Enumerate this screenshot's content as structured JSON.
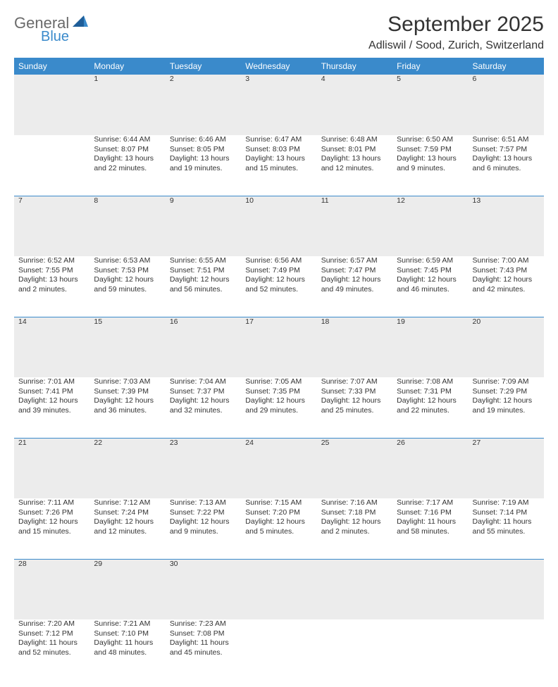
{
  "brand": {
    "part1": "General",
    "part2": "Blue"
  },
  "brand_colors": {
    "gray": "#6a6a6a",
    "blue": "#3a8acb"
  },
  "header": {
    "month_title": "September 2025",
    "location": "Adliswil / Sood, Zurich, Switzerland"
  },
  "calendar": {
    "header_bg": "#3a8acb",
    "header_fg": "#ffffff",
    "day_header_bg": "#ececec",
    "separator_color": "#3a8acb",
    "days_of_week": [
      "Sunday",
      "Monday",
      "Tuesday",
      "Wednesday",
      "Thursday",
      "Friday",
      "Saturday"
    ],
    "weeks": [
      {
        "nums": [
          "",
          "1",
          "2",
          "3",
          "4",
          "5",
          "6"
        ],
        "cells": [
          [],
          [
            "Sunrise: 6:44 AM",
            "Sunset: 8:07 PM",
            "Daylight: 13 hours",
            "and 22 minutes."
          ],
          [
            "Sunrise: 6:46 AM",
            "Sunset: 8:05 PM",
            "Daylight: 13 hours",
            "and 19 minutes."
          ],
          [
            "Sunrise: 6:47 AM",
            "Sunset: 8:03 PM",
            "Daylight: 13 hours",
            "and 15 minutes."
          ],
          [
            "Sunrise: 6:48 AM",
            "Sunset: 8:01 PM",
            "Daylight: 13 hours",
            "and 12 minutes."
          ],
          [
            "Sunrise: 6:50 AM",
            "Sunset: 7:59 PM",
            "Daylight: 13 hours",
            "and 9 minutes."
          ],
          [
            "Sunrise: 6:51 AM",
            "Sunset: 7:57 PM",
            "Daylight: 13 hours",
            "and 6 minutes."
          ]
        ]
      },
      {
        "nums": [
          "7",
          "8",
          "9",
          "10",
          "11",
          "12",
          "13"
        ],
        "cells": [
          [
            "Sunrise: 6:52 AM",
            "Sunset: 7:55 PM",
            "Daylight: 13 hours",
            "and 2 minutes."
          ],
          [
            "Sunrise: 6:53 AM",
            "Sunset: 7:53 PM",
            "Daylight: 12 hours",
            "and 59 minutes."
          ],
          [
            "Sunrise: 6:55 AM",
            "Sunset: 7:51 PM",
            "Daylight: 12 hours",
            "and 56 minutes."
          ],
          [
            "Sunrise: 6:56 AM",
            "Sunset: 7:49 PM",
            "Daylight: 12 hours",
            "and 52 minutes."
          ],
          [
            "Sunrise: 6:57 AM",
            "Sunset: 7:47 PM",
            "Daylight: 12 hours",
            "and 49 minutes."
          ],
          [
            "Sunrise: 6:59 AM",
            "Sunset: 7:45 PM",
            "Daylight: 12 hours",
            "and 46 minutes."
          ],
          [
            "Sunrise: 7:00 AM",
            "Sunset: 7:43 PM",
            "Daylight: 12 hours",
            "and 42 minutes."
          ]
        ]
      },
      {
        "nums": [
          "14",
          "15",
          "16",
          "17",
          "18",
          "19",
          "20"
        ],
        "cells": [
          [
            "Sunrise: 7:01 AM",
            "Sunset: 7:41 PM",
            "Daylight: 12 hours",
            "and 39 minutes."
          ],
          [
            "Sunrise: 7:03 AM",
            "Sunset: 7:39 PM",
            "Daylight: 12 hours",
            "and 36 minutes."
          ],
          [
            "Sunrise: 7:04 AM",
            "Sunset: 7:37 PM",
            "Daylight: 12 hours",
            "and 32 minutes."
          ],
          [
            "Sunrise: 7:05 AM",
            "Sunset: 7:35 PM",
            "Daylight: 12 hours",
            "and 29 minutes."
          ],
          [
            "Sunrise: 7:07 AM",
            "Sunset: 7:33 PM",
            "Daylight: 12 hours",
            "and 25 minutes."
          ],
          [
            "Sunrise: 7:08 AM",
            "Sunset: 7:31 PM",
            "Daylight: 12 hours",
            "and 22 minutes."
          ],
          [
            "Sunrise: 7:09 AM",
            "Sunset: 7:29 PM",
            "Daylight: 12 hours",
            "and 19 minutes."
          ]
        ]
      },
      {
        "nums": [
          "21",
          "22",
          "23",
          "24",
          "25",
          "26",
          "27"
        ],
        "cells": [
          [
            "Sunrise: 7:11 AM",
            "Sunset: 7:26 PM",
            "Daylight: 12 hours",
            "and 15 minutes."
          ],
          [
            "Sunrise: 7:12 AM",
            "Sunset: 7:24 PM",
            "Daylight: 12 hours",
            "and 12 minutes."
          ],
          [
            "Sunrise: 7:13 AM",
            "Sunset: 7:22 PM",
            "Daylight: 12 hours",
            "and 9 minutes."
          ],
          [
            "Sunrise: 7:15 AM",
            "Sunset: 7:20 PM",
            "Daylight: 12 hours",
            "and 5 minutes."
          ],
          [
            "Sunrise: 7:16 AM",
            "Sunset: 7:18 PM",
            "Daylight: 12 hours",
            "and 2 minutes."
          ],
          [
            "Sunrise: 7:17 AM",
            "Sunset: 7:16 PM",
            "Daylight: 11 hours",
            "and 58 minutes."
          ],
          [
            "Sunrise: 7:19 AM",
            "Sunset: 7:14 PM",
            "Daylight: 11 hours",
            "and 55 minutes."
          ]
        ]
      },
      {
        "nums": [
          "28",
          "29",
          "30",
          "",
          "",
          "",
          ""
        ],
        "cells": [
          [
            "Sunrise: 7:20 AM",
            "Sunset: 7:12 PM",
            "Daylight: 11 hours",
            "and 52 minutes."
          ],
          [
            "Sunrise: 7:21 AM",
            "Sunset: 7:10 PM",
            "Daylight: 11 hours",
            "and 48 minutes."
          ],
          [
            "Sunrise: 7:23 AM",
            "Sunset: 7:08 PM",
            "Daylight: 11 hours",
            "and 45 minutes."
          ],
          [],
          [],
          [],
          []
        ]
      }
    ]
  }
}
